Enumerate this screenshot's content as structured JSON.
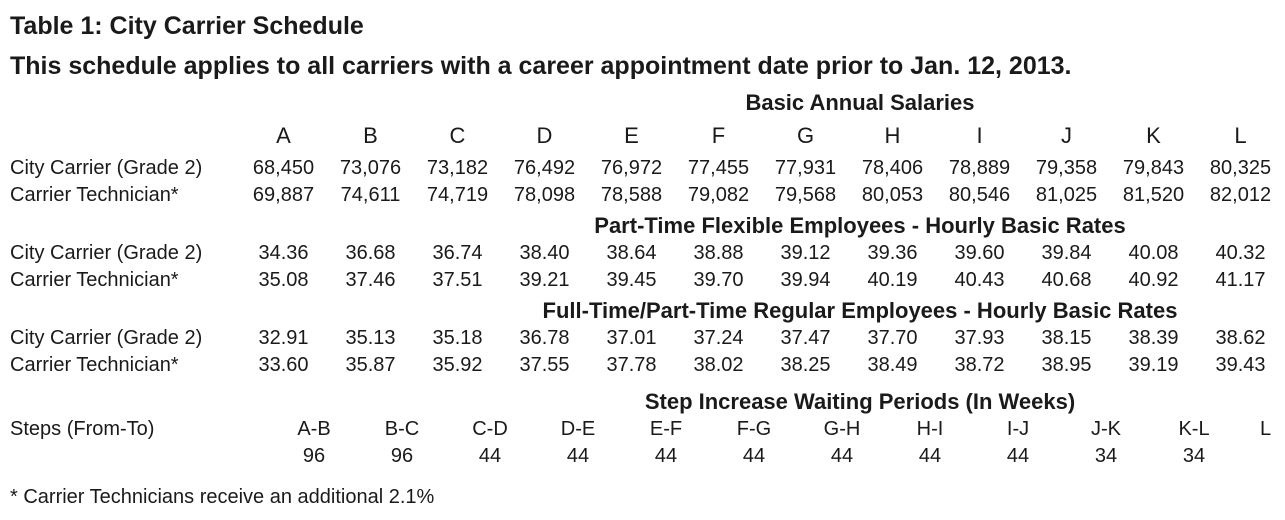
{
  "title": "Table 1: City Carrier Schedule",
  "subtitle": "This schedule applies to all carriers with a career appointment date prior to Jan. 12, 2013.",
  "footnote": "* Carrier Technicians receive an additional 2.1%",
  "columns": [
    "A",
    "B",
    "C",
    "D",
    "E",
    "F",
    "G",
    "H",
    "I",
    "J",
    "K",
    "L"
  ],
  "sections": [
    {
      "header": "Basic Annual Salaries",
      "rows": [
        {
          "label": "City Carrier (Grade 2)",
          "values": [
            "68,450",
            "73,076",
            "73,182",
            "76,492",
            "76,972",
            "77,455",
            "77,931",
            "78,406",
            "78,889",
            "79,358",
            "79,843",
            "80,325"
          ]
        },
        {
          "label": "Carrier Technician*",
          "values": [
            "69,887",
            "74,611",
            "74,719",
            "78,098",
            "78,588",
            "79,082",
            "79,568",
            "80,053",
            "80,546",
            "81,025",
            "81,520",
            "82,012"
          ]
        }
      ]
    },
    {
      "header": "Part-Time Flexible Employees - Hourly Basic Rates",
      "rows": [
        {
          "label": "City Carrier (Grade 2)",
          "values": [
            "34.36",
            "36.68",
            "36.74",
            "38.40",
            "38.64",
            "38.88",
            "39.12",
            "39.36",
            "39.60",
            "39.84",
            "40.08",
            "40.32"
          ]
        },
        {
          "label": "Carrier Technician*",
          "values": [
            "35.08",
            "37.46",
            "37.51",
            "39.21",
            "39.45",
            "39.70",
            "39.94",
            "40.19",
            "40.43",
            "40.68",
            "40.92",
            "41.17"
          ]
        }
      ]
    },
    {
      "header": "Full-Time/Part-Time Regular Employees - Hourly Basic Rates",
      "rows": [
        {
          "label": "City Carrier (Grade 2)",
          "values": [
            "32.91",
            "35.13",
            "35.18",
            "36.78",
            "37.01",
            "37.24",
            "37.47",
            "37.70",
            "37.93",
            "38.15",
            "38.39",
            "38.62"
          ]
        },
        {
          "label": "Carrier Technician*",
          "values": [
            "33.60",
            "35.87",
            "35.92",
            "37.55",
            "37.78",
            "38.02",
            "38.25",
            "38.49",
            "38.72",
            "38.95",
            "39.19",
            "39.43"
          ]
        }
      ]
    }
  ],
  "steps": {
    "header": "Step Increase Waiting Periods (In Weeks)",
    "label": "Steps (From-To)",
    "ranges": [
      "A-B",
      "B-C",
      "C-D",
      "D-E",
      "E-F",
      "F-G",
      "G-H",
      "H-I",
      "I-J",
      "J-K",
      "K-L",
      "L"
    ],
    "weeks": [
      "96",
      "96",
      "44",
      "44",
      "44",
      "44",
      "44",
      "44",
      "44",
      "34",
      "34",
      ""
    ]
  },
  "colors": {
    "text": "#1a1a1a",
    "background": "#ffffff"
  }
}
